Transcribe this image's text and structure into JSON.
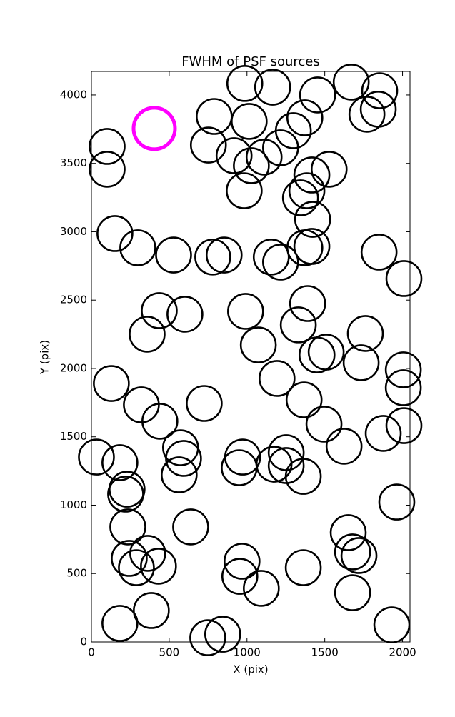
{
  "chart_data": {
    "type": "scatter",
    "title": "FWHM of PSF sources",
    "x_label": "X (pix)",
    "y_label": "Y (pix)",
    "xlim": [
      0,
      2048
    ],
    "ylim": [
      0,
      4172
    ],
    "xticks": [
      0,
      500,
      1000,
      1500,
      2000
    ],
    "yticks": [
      0,
      500,
      1000,
      1500,
      2000,
      2500,
      3000,
      3500,
      4000
    ],
    "series": [
      {
        "color": "#000000",
        "x": [
          101,
          101,
          151,
          298,
          528,
          752,
          789,
          986,
          1165,
          1014,
          917,
          1028,
          1110,
          1216,
          1298,
          1372,
          1454,
          1670,
          1853,
          1771,
          1844,
          982,
          1417,
          1528,
          1385,
          1344,
          1422,
          1372,
          1417,
          780,
          853,
          1156,
          1216,
          1849,
          2009,
          436,
          601,
          358,
          991,
          1073,
          1390,
          1330,
          1450,
          1509,
          1761,
          1734,
          2005,
          2005,
          128,
          321,
          440,
          725,
          1193,
          1367,
          1495,
          1624,
          1876,
          2009,
          32,
          183,
          573,
          592,
          564,
          972,
          950,
          1174,
          1252,
          1252,
          1362,
          229,
          220,
          1963,
          234,
          638,
          1651,
          362,
          243,
          289,
          431,
          968,
          954,
          1092,
          1362,
          1679,
          1720,
          1679,
          385,
          183,
          748,
          844,
          1931
        ],
        "y": [
          3624,
          3457,
          2987,
          2883,
          2830,
          3634,
          3843,
          4084,
          4057,
          3807,
          3556,
          3483,
          3546,
          3614,
          3739,
          3833,
          4000,
          4094,
          4031,
          3859,
          3896,
          3300,
          3415,
          3457,
          3300,
          3248,
          3091,
          2883,
          2893,
          2815,
          2830,
          2815,
          2778,
          2851,
          2658,
          2423,
          2397,
          2251,
          2418,
          2172,
          2475,
          2319,
          2099,
          2120,
          2256,
          2042,
          1990,
          1859,
          1890,
          1734,
          1614,
          1744,
          1927,
          1770,
          1593,
          1431,
          1525,
          1582,
          1352,
          1311,
          1420,
          1342,
          1222,
          1352,
          1274,
          1300,
          1384,
          1290,
          1211,
          1117,
          1081,
          1023,
          841,
          841,
          799,
          648,
          611,
          543,
          554,
          590,
          480,
          392,
          543,
          658,
          632,
          360,
          230,
          136,
          31,
          57,
          125
        ]
      },
      {
        "color": "#ff00ff",
        "x": [
          404
        ],
        "y": [
          3755
        ]
      }
    ]
  }
}
